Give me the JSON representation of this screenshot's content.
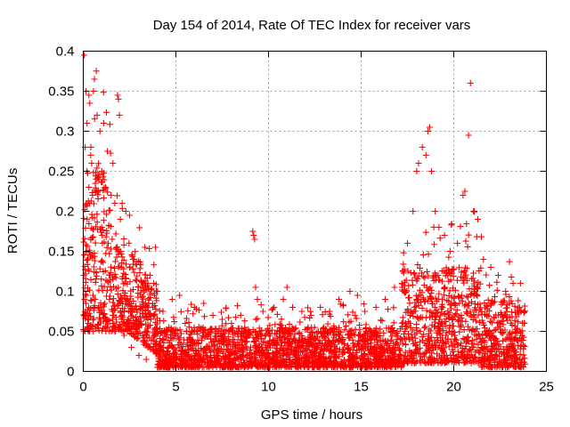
{
  "chart_data": {
    "type": "scatter",
    "title": "Day 154 of 2014, Rate Of TEC Index for receiver vars",
    "xlabel": "GPS time / hours",
    "ylabel": "ROTI / TECUs",
    "xlim": [
      0,
      25
    ],
    "ylim": [
      0,
      0.4
    ],
    "xticks": [
      0,
      5,
      10,
      15,
      20,
      25
    ],
    "xtick_labels": [
      "0",
      "5",
      "10",
      "15",
      "20",
      "25"
    ],
    "yticks": [
      0,
      0.05,
      0.1,
      0.15,
      0.2,
      0.25,
      0.3,
      0.35,
      0.4
    ],
    "ytick_labels": [
      "0",
      "0.05",
      "0.1",
      "0.15",
      "0.2",
      "0.25",
      "0.3",
      "0.35",
      "0.4"
    ],
    "grid": true,
    "marker": "+",
    "color": "#ff0000",
    "series": [
      {
        "name": "ROTI",
        "points": [
          [
            0.05,
            0.395
          ],
          [
            0.1,
            0.28
          ],
          [
            0.15,
            0.35
          ],
          [
            0.2,
            0.31
          ],
          [
            0.3,
            0.345
          ],
          [
            0.35,
            0.335
          ],
          [
            0.4,
            0.27
          ],
          [
            0.5,
            0.22
          ],
          [
            0.55,
            0.35
          ],
          [
            0.6,
            0.365
          ],
          [
            0.75,
            0.32
          ],
          [
            0.9,
            0.3
          ],
          [
            1.1,
            0.31
          ],
          [
            1.3,
            0.275
          ],
          [
            1.6,
            0.26
          ],
          [
            1.85,
            0.345
          ],
          [
            1.9,
            0.34
          ],
          [
            1.95,
            0.32
          ],
          [
            2.1,
            0.21
          ],
          [
            2.3,
            0.2
          ],
          [
            2.5,
            0.195
          ],
          [
            0.2,
            0.25
          ],
          [
            0.3,
            0.23
          ],
          [
            0.45,
            0.26
          ],
          [
            0.7,
            0.24
          ],
          [
            1.0,
            0.25
          ],
          [
            1.2,
            0.23
          ],
          [
            1.5,
            0.22
          ],
          [
            1.7,
            0.21
          ],
          [
            2.0,
            0.19
          ],
          [
            0.15,
            0.07
          ],
          [
            0.25,
            0.06
          ],
          [
            0.6,
            0.08
          ],
          [
            0.9,
            0.065
          ],
          [
            1.3,
            0.055
          ],
          [
            1.6,
            0.06
          ],
          [
            2.2,
            0.045
          ],
          [
            2.6,
            0.03
          ],
          [
            3.0,
            0.02
          ],
          [
            3.4,
            0.015
          ],
          [
            3.6,
            0.12
          ],
          [
            3.8,
            0.11
          ],
          [
            3.9,
            0.155
          ],
          [
            4.0,
            0.1
          ],
          [
            4.3,
            0.075
          ],
          [
            4.8,
            0.09
          ],
          [
            5.2,
            0.095
          ],
          [
            5.5,
            0.06
          ],
          [
            6.0,
            0.08
          ],
          [
            6.5,
            0.085
          ],
          [
            7.0,
            0.07
          ],
          [
            7.5,
            0.065
          ],
          [
            8.0,
            0.06
          ],
          [
            8.5,
            0.07
          ],
          [
            9.15,
            0.175
          ],
          [
            9.2,
            0.17
          ],
          [
            9.25,
            0.165
          ],
          [
            9.3,
            0.105
          ],
          [
            9.4,
            0.09
          ],
          [
            9.7,
            0.075
          ],
          [
            10.3,
            0.08
          ],
          [
            10.8,
            0.09
          ],
          [
            11.0,
            0.105
          ],
          [
            11.3,
            0.08
          ],
          [
            11.8,
            0.075
          ],
          [
            12.3,
            0.07
          ],
          [
            12.8,
            0.08
          ],
          [
            13.3,
            0.075
          ],
          [
            13.8,
            0.09
          ],
          [
            14.4,
            0.1
          ],
          [
            14.8,
            0.095
          ],
          [
            15.2,
            0.075
          ],
          [
            15.8,
            0.08
          ],
          [
            16.3,
            0.09
          ],
          [
            16.8,
            0.105
          ],
          [
            17.2,
            0.11
          ],
          [
            17.5,
            0.16
          ],
          [
            17.8,
            0.2
          ],
          [
            18.0,
            0.25
          ],
          [
            18.1,
            0.26
          ],
          [
            18.3,
            0.28
          ],
          [
            18.5,
            0.27
          ],
          [
            18.6,
            0.3
          ],
          [
            18.7,
            0.305
          ],
          [
            18.8,
            0.25
          ],
          [
            19.0,
            0.2
          ],
          [
            19.2,
            0.18
          ],
          [
            19.5,
            0.17
          ],
          [
            19.8,
            0.15
          ],
          [
            20.2,
            0.16
          ],
          [
            20.5,
            0.22
          ],
          [
            20.6,
            0.225
          ],
          [
            20.8,
            0.295
          ],
          [
            20.9,
            0.36
          ],
          [
            21.1,
            0.2
          ],
          [
            21.3,
            0.19
          ],
          [
            21.6,
            0.14
          ],
          [
            22.0,
            0.13
          ],
          [
            22.4,
            0.12
          ],
          [
            22.8,
            0.1
          ],
          [
            23.2,
            0.11
          ],
          [
            23.6,
            0.11
          ],
          [
            17.6,
            0.04
          ],
          [
            18.2,
            0.05
          ],
          [
            19.0,
            0.03
          ],
          [
            20.0,
            0.02
          ],
          [
            21.0,
            0.03
          ],
          [
            22.0,
            0.025
          ],
          [
            23.0,
            0.02
          ],
          [
            23.7,
            0.015
          ]
        ],
        "description": "dense red + markers: high scatter 0.05-0.35 from 0-3 h, decaying to 0.01-0.09 band from 4-17 h, rising again to 0.05-0.3 around 17.5-23.8 h"
      }
    ]
  }
}
